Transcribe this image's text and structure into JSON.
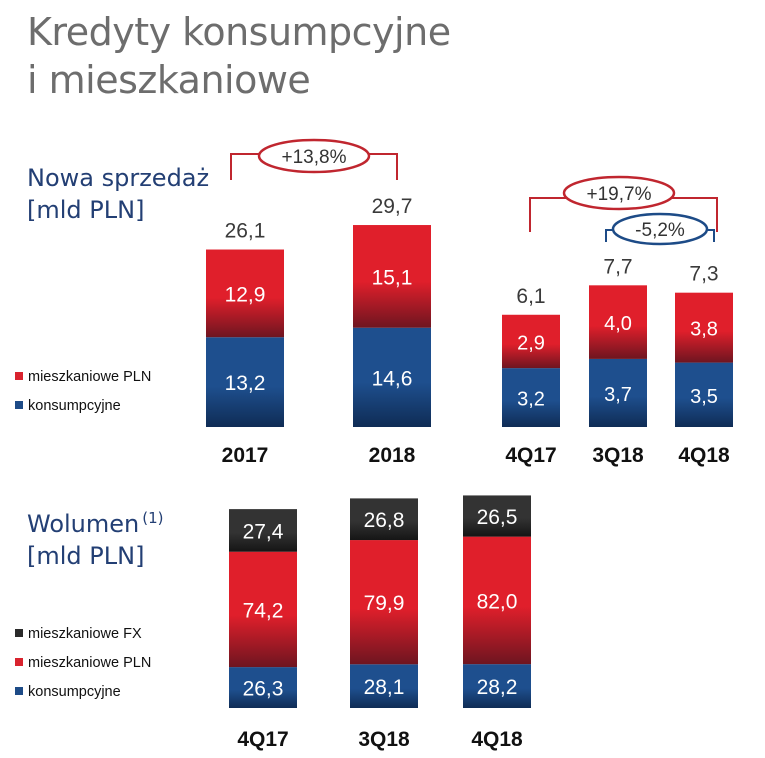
{
  "title": {
    "line1": "Kredyty konsumpcyjne",
    "line2": "i mieszkaniowe"
  },
  "colors": {
    "consumer": "#1d4b87",
    "mortgage_pln": "#d9232e",
    "mortgage_fx": "#2b2b2b",
    "badge_red": "#c0262f",
    "badge_blue": "#1d4b87",
    "title_gray": "#6d6d6d",
    "label_blue": "#233f74"
  },
  "chart_data": [
    {
      "type": "bar",
      "stacked": true,
      "section_label": {
        "line1": "Nowa sprzedaż",
        "line2": "[mld PLN]"
      },
      "categories": [
        "2017",
        "2018"
      ],
      "series": [
        {
          "name": "konsumpcyjne",
          "values": [
            "13,2",
            "14,6"
          ]
        },
        {
          "name": "mieszkaniowe PLN",
          "values": [
            "12,9",
            "15,1"
          ]
        }
      ],
      "totals": [
        "26,1",
        "29,7"
      ],
      "legend": [
        "mieszkaniowe PLN",
        "konsumpcyjne"
      ],
      "annotations": [
        {
          "text": "+13,8%",
          "from": "2017",
          "to": "2018"
        }
      ]
    },
    {
      "type": "bar",
      "stacked": true,
      "categories": [
        "4Q17",
        "3Q18",
        "4Q18"
      ],
      "series": [
        {
          "name": "konsumpcyjne",
          "values": [
            "3,2",
            "3,7",
            "3,5"
          ]
        },
        {
          "name": "mieszkaniowe PLN",
          "values": [
            "2,9",
            "4,0",
            "3,8"
          ]
        }
      ],
      "totals": [
        "6,1",
        "7,7",
        "7,3"
      ],
      "annotations": [
        {
          "text": "+19,7%",
          "from": "4Q17",
          "to": "4Q18"
        },
        {
          "text": "-5,2%",
          "from": "3Q18",
          "to": "4Q18"
        }
      ]
    },
    {
      "type": "bar",
      "stacked": true,
      "section_label": {
        "line1": "Wolumen",
        "sup": "(1)",
        "line2": "[mld PLN]"
      },
      "categories": [
        "4Q17",
        "3Q18",
        "4Q18"
      ],
      "series": [
        {
          "name": "konsumpcyjne",
          "values": [
            "26,3",
            "28,1",
            "28,2"
          ]
        },
        {
          "name": "mieszkaniowe PLN",
          "values": [
            "74,2",
            "79,9",
            "82,0"
          ]
        },
        {
          "name": "mieszkaniowe FX",
          "values": [
            "27,4",
            "26,8",
            "26,5"
          ]
        }
      ],
      "legend": [
        "mieszkaniowe FX",
        "mieszkaniowe PLN",
        "konsumpcyjne"
      ]
    }
  ]
}
